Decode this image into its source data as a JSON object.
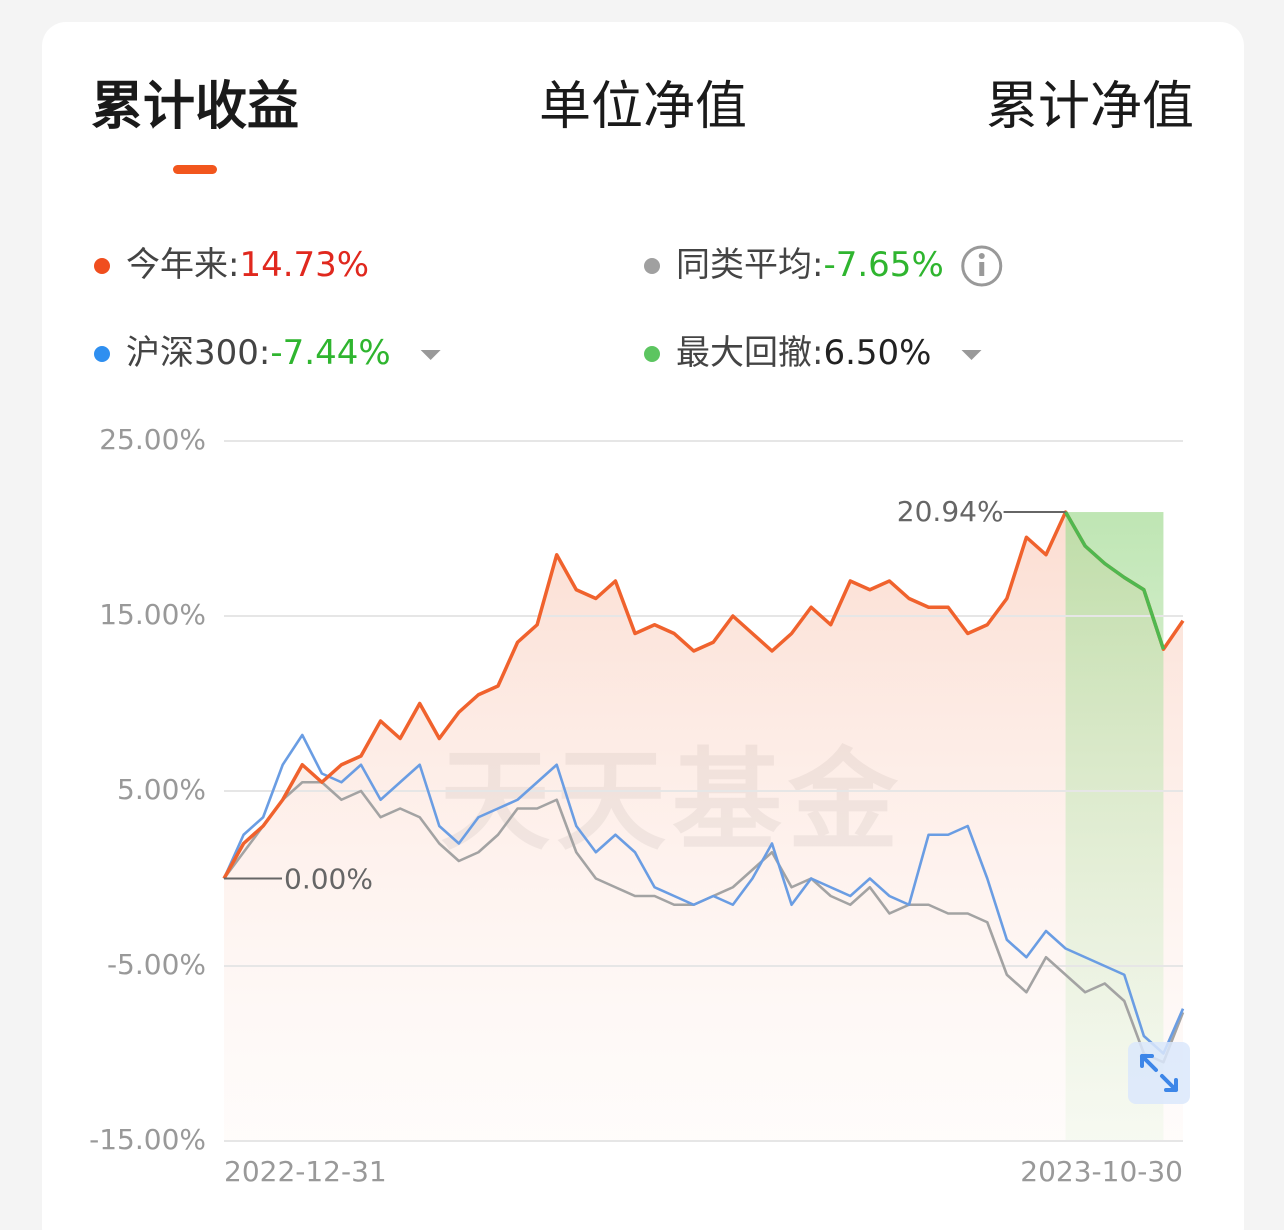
{
  "tabs": [
    "累计收益",
    "单位净值",
    "累计净值"
  ],
  "active_tab": 0,
  "legend": [
    {
      "label": "今年来:",
      "value": "14.73%",
      "color": "#f04e1e",
      "value_color": "#e0281e"
    },
    {
      "label": "同类平均:",
      "value": "-7.65%",
      "color": "#a0a0a0",
      "value_color": "#2fb52f"
    },
    {
      "label": "沪深300:",
      "value": "-7.44%",
      "color": "#2f8ff0",
      "value_color": "#2fb52f"
    },
    {
      "label": "最大回撤:",
      "value": "6.50%",
      "color": "#5cc560",
      "value_color": "#222222"
    }
  ],
  "chart_data": {
    "type": "line",
    "watermark": "天天基金",
    "categories": [
      "2022-12-31",
      null,
      null,
      null,
      null,
      null,
      null,
      null,
      null,
      null,
      null,
      null,
      null,
      null,
      null,
      null,
      null,
      null,
      null,
      null,
      null,
      null,
      null,
      null,
      null,
      null,
      null,
      null,
      null,
      null,
      null,
      null,
      null,
      null,
      null,
      null,
      null,
      null,
      null,
      null,
      null,
      null,
      null,
      null,
      null,
      null,
      null,
      null,
      null,
      "2023-10-30"
    ],
    "series": [
      {
        "name": "今年来",
        "color": "#f0622d",
        "values": [
          0,
          2,
          3,
          4.5,
          6.5,
          5.5,
          6.5,
          7,
          9,
          8,
          10,
          8,
          9.5,
          10.5,
          11,
          13.5,
          14.5,
          18.5,
          16.5,
          16,
          17,
          14,
          14.5,
          14,
          13,
          13.5,
          15,
          14,
          13,
          14,
          15.5,
          14.5,
          17,
          16.5,
          17,
          16,
          15.5,
          15.5,
          14,
          14.5,
          16,
          19.5,
          18.5,
          20.94,
          19,
          18,
          17.2,
          16.5,
          13.1,
          14.73
        ]
      },
      {
        "name": "同类平均",
        "color": "#a3a3a3",
        "values": [
          0,
          1.5,
          3,
          4.5,
          5.5,
          5.5,
          4.5,
          5,
          3.5,
          4,
          3.5,
          2,
          1,
          1.5,
          2.5,
          4,
          4,
          4.5,
          1.5,
          0,
          -0.5,
          -1,
          -1,
          -1.5,
          -1.5,
          -1,
          -0.5,
          0.5,
          1.5,
          -0.5,
          0,
          -1,
          -1.5,
          -0.5,
          -2,
          -1.5,
          -1.5,
          -2,
          -2,
          -2.5,
          -5.5,
          -6.5,
          -4.5,
          -5.5,
          -6.5,
          -6,
          -7,
          -10,
          -10.5,
          -7.65
        ]
      },
      {
        "name": "沪深300",
        "color": "#6a9de3",
        "values": [
          0,
          2.5,
          3.5,
          6.5,
          8.2,
          6,
          5.5,
          6.5,
          4.5,
          5.5,
          6.5,
          3,
          2,
          3.5,
          4,
          4.5,
          5.5,
          6.5,
          3,
          1.5,
          2.5,
          1.5,
          -0.5,
          -1,
          -1.5,
          -1,
          -1.5,
          0,
          2,
          -1.5,
          0,
          -0.5,
          -1,
          0,
          -1,
          -1.5,
          2.5,
          2.5,
          3,
          0,
          -3.5,
          -4.5,
          -3,
          -4,
          -4.5,
          -5,
          -5.5,
          -9,
          -10,
          -7.44
        ]
      }
    ],
    "annotations": [
      "0.00%",
      "20.94%"
    ],
    "drawdown_color": "#4fb84f",
    "ylim": [
      -15,
      25
    ],
    "yticks": [
      {
        "value": -15,
        "label": "-15.00%"
      },
      {
        "value": -5,
        "label": "-5.00%"
      },
      {
        "value": 5,
        "label": "5.00%"
      },
      {
        "value": 15,
        "label": "15.00%"
      },
      {
        "value": 25,
        "label": "25.00%"
      }
    ],
    "grid": true
  }
}
